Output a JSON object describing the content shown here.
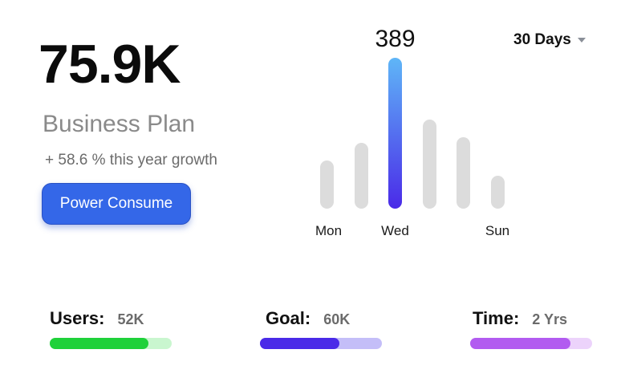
{
  "summary": {
    "big_value": "75.9K",
    "plan_title": "Business Plan",
    "growth_text": "+ 58.6 % this year growth",
    "cta_label": "Power Consume"
  },
  "range_selector": {
    "label": "30 Days",
    "icon": "caret-down-icon"
  },
  "chart_data": {
    "type": "bar",
    "highlight_label": "389",
    "highlight_index": 2,
    "values": [
      125,
      170,
      389,
      230,
      185,
      85
    ],
    "tick_labels": [
      {
        "index": 0,
        "text": "Mon"
      },
      {
        "index": 2,
        "text": "Wed"
      },
      {
        "index": 5,
        "text": "Sun"
      }
    ],
    "colors": {
      "bar": "#dcdcdc",
      "highlight_top": "#5fb6f7",
      "highlight_bottom": "#4a2ae8"
    }
  },
  "stats": [
    {
      "label": "Users:",
      "value": "52K",
      "progress": 0.81,
      "fill_color": "#1fd13a",
      "track_color": "#c9f6cf"
    },
    {
      "label": "Goal:",
      "value": "60K",
      "progress": 0.65,
      "fill_color": "#4a2ae8",
      "track_color": "#c4bef8"
    },
    {
      "label": "Time:",
      "value": "2 Yrs",
      "progress": 0.82,
      "fill_color": "#b25bf0",
      "track_color": "#ecd3fb"
    }
  ]
}
